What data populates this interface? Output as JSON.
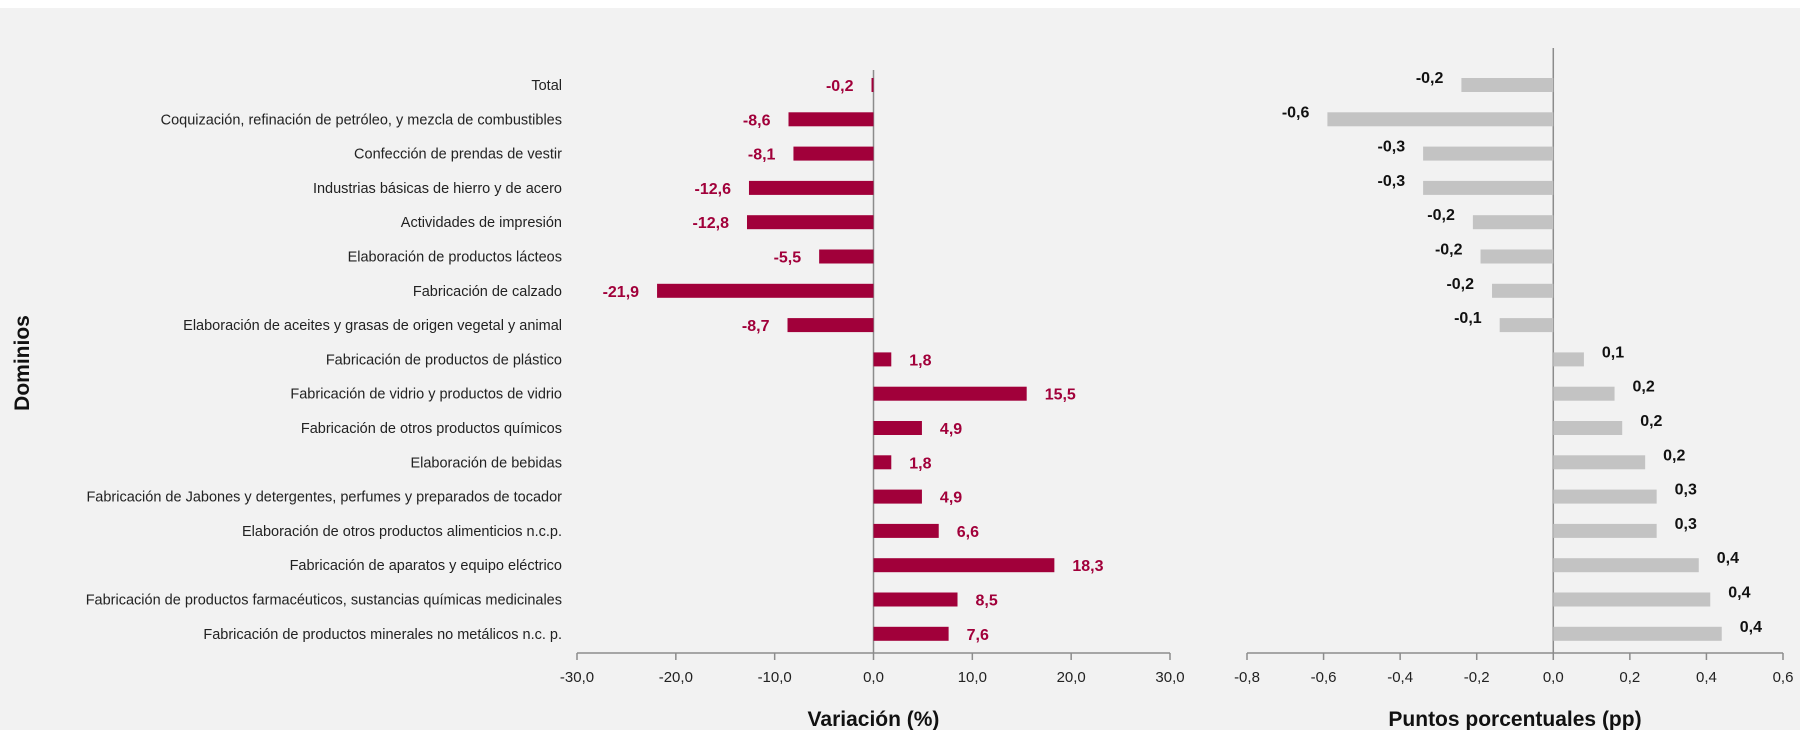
{
  "chart_data": [
    {
      "type": "bar",
      "orientation": "horizontal",
      "categories": [
        "Total",
        "Coquización, refinación de petróleo, y mezcla de combustibles",
        "Confección de prendas de vestir",
        "Industrias básicas de hierro y de acero",
        "Actividades de impresión",
        "Elaboración de productos lácteos",
        "Fabricación de calzado ",
        "Elaboración de aceites y grasas de origen vegetal y animal",
        "Fabricación de productos de plástico",
        "Fabricación de vidrio y productos de vidrio",
        "Fabricación de otros productos químicos",
        "Elaboración de bebidas ",
        "Fabricación de Jabones y detergentes, perfumes y preparados de tocador",
        "Elaboración de otros productos alimenticios n.c.p. ",
        "Fabricación de aparatos y equipo eléctrico",
        "Fabricación de productos farmacéuticos, sustancias químicas medicinales",
        "Fabricación de productos minerales no metálicos n.c. p."
      ],
      "values": [
        -0.2,
        -8.6,
        -8.1,
        -12.6,
        -12.8,
        -5.5,
        -21.9,
        -8.7,
        1.8,
        15.5,
        4.9,
        1.8,
        4.9,
        6.6,
        18.3,
        8.5,
        7.6
      ],
      "value_labels": [
        "-0,2",
        "-8,6",
        "-8,1",
        "-12,6",
        "-12,8",
        "-5,5",
        "-21,9",
        "-8,7",
        "1,8",
        "15,5",
        "4,9",
        "1,8",
        "4,9",
        "6,6",
        "18,3",
        "8,5",
        "7,6"
      ],
      "xlim": [
        -30,
        30
      ],
      "xticks": [
        -30,
        -20,
        -10,
        0,
        10,
        20,
        30
      ],
      "xtick_labels": [
        "-30,0",
        "-20,0",
        "-10,0",
        "0,0",
        "10,0",
        "20,0",
        "30,0"
      ],
      "xlabel": "Variación (%)",
      "ylabel": "Dominios",
      "bar_color": "#a1003a",
      "label_color": "#a1003a",
      "grid": false
    },
    {
      "type": "bar",
      "orientation": "horizontal",
      "values": [
        -0.24,
        -0.59,
        -0.34,
        -0.34,
        -0.21,
        -0.19,
        -0.16,
        -0.14,
        0.08,
        0.16,
        0.18,
        0.24,
        0.27,
        0.27,
        0.38,
        0.41,
        0.44
      ],
      "value_labels": [
        "-0,2",
        "-0,6",
        "-0,3",
        "-0,3",
        "-0,2",
        "-0,2",
        "-0,2",
        "-0,1",
        "0,1",
        "0,2",
        "0,2",
        "0,2",
        "0,3",
        "0,3",
        "0,4",
        "0,4",
        "0,4"
      ],
      "xlim": [
        -0.8,
        0.6
      ],
      "xticks": [
        -0.8,
        -0.6,
        -0.4,
        -0.2,
        0,
        0.2,
        0.4,
        0.6
      ],
      "xtick_labels": [
        "-0,8",
        "-0,6",
        "-0,4",
        "-0,2",
        "0,0",
        "0,2",
        "0,4",
        "0,6"
      ],
      "xlabel": "Puntos porcentuales (pp)",
      "bar_color": "#c3c3c3",
      "label_color": "#111111",
      "grid": false
    }
  ]
}
